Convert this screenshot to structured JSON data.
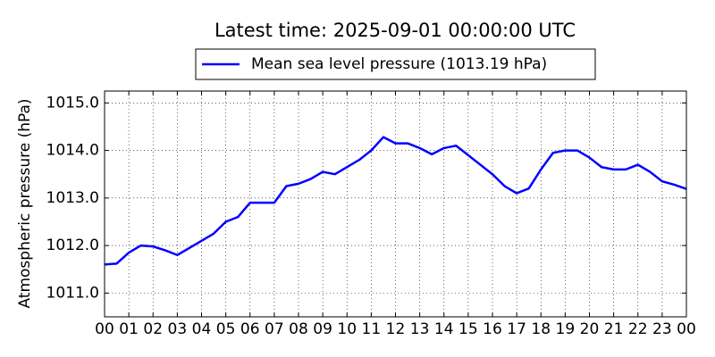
{
  "chart_data": {
    "type": "line",
    "title": "Latest time: 2025-09-01 00:00:00 UTC",
    "ylabel": "Atmospheric pressure (hPa)",
    "x": [
      0,
      0.5,
      1,
      1.5,
      2,
      2.5,
      3,
      3.5,
      4,
      4.5,
      5,
      5.5,
      6,
      6.5,
      7,
      7.5,
      8,
      8.5,
      9,
      9.5,
      10,
      10.5,
      11,
      11.5,
      12,
      12.5,
      13,
      13.5,
      14,
      14.5,
      15,
      15.5,
      16,
      16.5,
      17,
      17.5,
      18,
      18.5,
      19,
      19.5,
      20,
      20.5,
      21,
      21.5,
      22,
      22.5,
      23,
      23.5,
      24
    ],
    "series": [
      {
        "name": "Mean sea level pressure (1013.19 hPa)",
        "color": "#0000ff",
        "values": [
          1011.6,
          1011.62,
          1011.85,
          1012.0,
          1011.98,
          1011.9,
          1011.8,
          1011.95,
          1012.1,
          1012.25,
          1012.5,
          1012.6,
          1012.9,
          1012.9,
          1012.9,
          1013.25,
          1013.3,
          1013.4,
          1013.55,
          1013.5,
          1013.65,
          1013.8,
          1014.0,
          1014.28,
          1014.15,
          1014.15,
          1014.05,
          1013.92,
          1014.05,
          1014.1,
          1013.9,
          1013.7,
          1013.5,
          1013.25,
          1013.1,
          1013.2,
          1013.6,
          1013.95,
          1014.0,
          1014.0,
          1013.85,
          1013.65,
          1013.6,
          1013.6,
          1013.7,
          1013.55,
          1013.35,
          1013.28,
          1013.19
        ]
      }
    ],
    "xlim": [
      0,
      24
    ],
    "xticks": [
      {
        "value": 0,
        "label": "00"
      },
      {
        "value": 1,
        "label": "01"
      },
      {
        "value": 2,
        "label": "02"
      },
      {
        "value": 3,
        "label": "03"
      },
      {
        "value": 4,
        "label": "04"
      },
      {
        "value": 5,
        "label": "05"
      },
      {
        "value": 6,
        "label": "06"
      },
      {
        "value": 7,
        "label": "07"
      },
      {
        "value": 8,
        "label": "08"
      },
      {
        "value": 9,
        "label": "09"
      },
      {
        "value": 10,
        "label": "10"
      },
      {
        "value": 11,
        "label": "11"
      },
      {
        "value": 12,
        "label": "12"
      },
      {
        "value": 13,
        "label": "13"
      },
      {
        "value": 14,
        "label": "14"
      },
      {
        "value": 15,
        "label": "15"
      },
      {
        "value": 16,
        "label": "16"
      },
      {
        "value": 17,
        "label": "17"
      },
      {
        "value": 18,
        "label": "18"
      },
      {
        "value": 19,
        "label": "19"
      },
      {
        "value": 20,
        "label": "20"
      },
      {
        "value": 21,
        "label": "21"
      },
      {
        "value": 22,
        "label": "22"
      },
      {
        "value": 23,
        "label": "23"
      },
      {
        "value": 24,
        "label": "00"
      }
    ],
    "ylim": [
      1010.5,
      1015.25
    ],
    "yticks": [
      {
        "value": 1011,
        "label": "1011.0"
      },
      {
        "value": 1012,
        "label": "1012.0"
      },
      {
        "value": 1013,
        "label": "1013.0"
      },
      {
        "value": 1014,
        "label": "1014.0"
      },
      {
        "value": 1015,
        "label": "1015.0"
      }
    ],
    "grid": true
  }
}
